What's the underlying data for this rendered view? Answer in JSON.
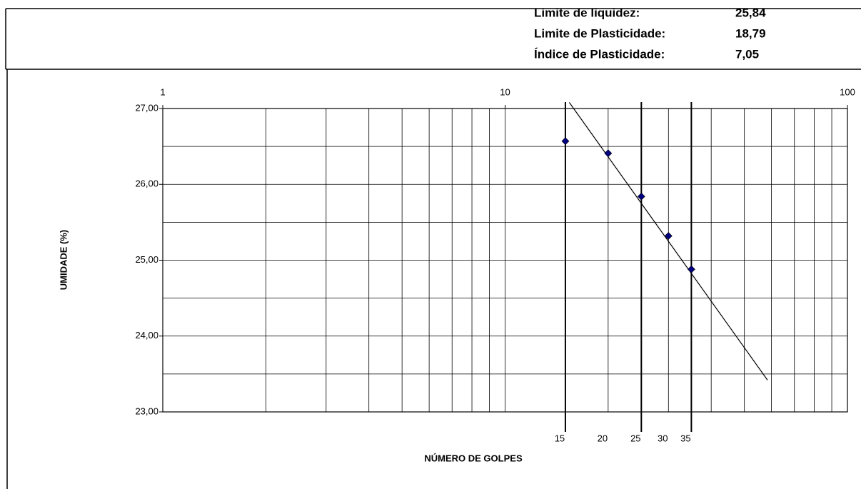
{
  "summary": {
    "rows": [
      {
        "label": "Limite de liquidez:",
        "value": "25,84"
      },
      {
        "label": "Limite de Plasticidade:",
        "value": "18,79"
      },
      {
        "label": "Índice de Plasticidade:",
        "value": "7,05"
      }
    ]
  },
  "chart_data": {
    "type": "scatter",
    "log_x": true,
    "grid": true,
    "color": "#000080",
    "x_label": "NÚMERO DE GOLPES",
    "y_label": "UMIDADE (%)",
    "x": [
      15,
      20,
      25,
      30,
      35
    ],
    "values": [
      26.57,
      26.41,
      25.84,
      25.32,
      24.88
    ],
    "xlim": [
      1,
      100
    ],
    "xticks": [
      1,
      10,
      100
    ],
    "xminor": [
      2,
      3,
      4,
      5,
      6,
      7,
      8,
      9,
      20,
      30,
      40,
      50,
      60,
      70,
      80,
      90
    ],
    "ylim": [
      23,
      27
    ],
    "yticks": [
      {
        "value": 23,
        "label": "23,00"
      },
      {
        "value": 24,
        "label": "24,00"
      },
      {
        "value": 25,
        "label": "25,00"
      },
      {
        "value": 26,
        "label": "26,00"
      },
      {
        "value": 27,
        "label": "27,00"
      }
    ],
    "yminor": [
      23.5,
      24.5,
      25.5,
      26.5
    ],
    "ref_lines": [
      15,
      25,
      35
    ],
    "bottom_labels": [
      15,
      20,
      25,
      30,
      35
    ],
    "trend_line": {
      "x": [
        15.4,
        58.4
      ],
      "y": [
        27.08,
        23.42
      ]
    }
  }
}
